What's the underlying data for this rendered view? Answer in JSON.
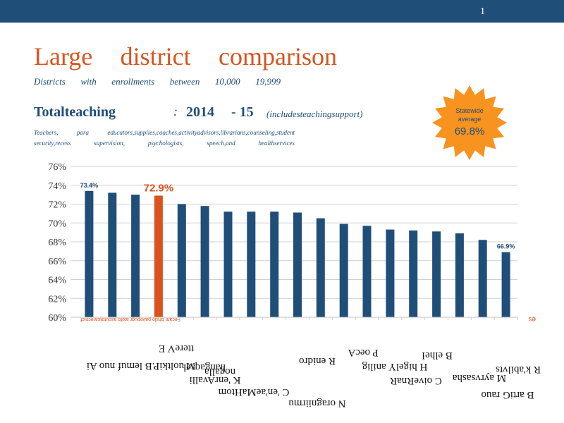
{
  "slide": {
    "number": "1"
  },
  "title_words": [
    "Large",
    "district",
    "comparison"
  ],
  "subtitle_words": [
    "Districts",
    "with",
    "enrollments",
    "between",
    "10,000",
    "19,999"
  ],
  "heading": {
    "main": "Totalteaching",
    "colon": ":",
    "year_start": "2014",
    "year_end": "- 15",
    "note": "(includesteachingsupport)"
  },
  "detail_lines": [
    [
      "Teachers,",
      "para",
      "educators,supplies,coaches,activityadvisors,librarians,counseling,student"
    ],
    [
      "security,recess",
      "supervision,",
      "psychologists,",
      "speech,and",
      "healthservices"
    ]
  ],
  "statewide": {
    "label_line1": "Statewide",
    "label_line2": "average",
    "value": "69.8%"
  },
  "colors": {
    "bar": "#1f4e79",
    "highlight": "#d9531e",
    "burst": "#f7931e",
    "topbar": "#1f4e79"
  },
  "chart_data": {
    "type": "bar",
    "ylim": [
      60,
      76
    ],
    "yticks": [
      "60%",
      "62%",
      "64%",
      "66%",
      "68%",
      "70%",
      "72%",
      "74%",
      "76%"
    ],
    "grid": true,
    "values": [
      73.4,
      73.2,
      73.0,
      72.9,
      72.0,
      71.8,
      71.2,
      71.2,
      71.2,
      71.1,
      70.5,
      69.9,
      69.7,
      69.3,
      69.2,
      69.1,
      68.9,
      68.2,
      66.9
    ],
    "highlight_index": 3,
    "data_labels": [
      {
        "index": 0,
        "text": "73.4%"
      },
      {
        "index": 3,
        "text": "72.9%"
      },
      {
        "index": 18,
        "text": "66.9%"
      }
    ],
    "x_labels_garbled": [
      "M'uoltkiP.B lemuf nuo Ai",
      "ttereV E",
      "hangaqsel",
      "K 'enrAvalli",
      "nogalla",
      "C 'en'aeMaHtom",
      "N oragniirmu",
      "R enidro",
      "P oecA",
      "H higelY anilig",
      "C oiveRnaR",
      "M ayrvsasha",
      "B elheI",
      "R k'abilvts",
      "B artiG rauo"
    ],
    "footnote_left": "Fecam bhslo pavepugr atofo asoutotsarecnicf",
    "footnote_right": "es"
  }
}
